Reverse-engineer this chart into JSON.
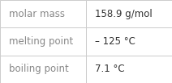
{
  "rows": [
    [
      "molar mass",
      "158.9 g/mol"
    ],
    [
      "melting point",
      "– 125 °C"
    ],
    [
      "boiling point",
      "7.1 °C"
    ]
  ],
  "col_split": 0.5,
  "background_color": "#f7f7f7",
  "cell_bg_color": "#ffffff",
  "border_color": "#cccccc",
  "left_font_color": "#888888",
  "right_font_color": "#333333",
  "font_size": 8.5
}
